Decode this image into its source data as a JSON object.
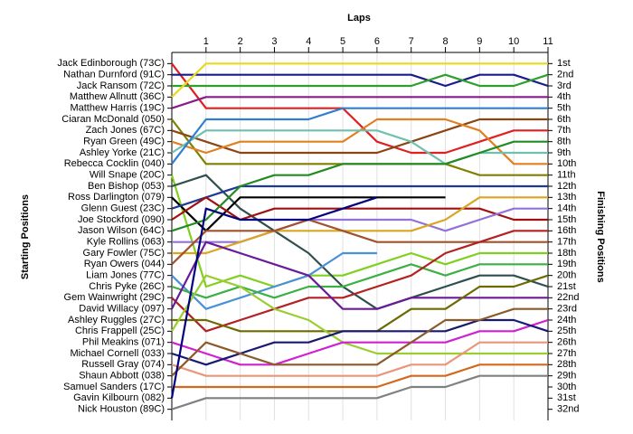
{
  "chart_data": {
    "type": "line",
    "title": "Laps",
    "ylabel": "Starting Positions",
    "y2label": "Finishing Positions",
    "x": [
      0,
      1,
      2,
      3,
      4,
      5,
      6,
      7,
      8,
      9,
      10,
      11
    ],
    "xlim": [
      0,
      11
    ],
    "xticks": [
      1,
      2,
      3,
      4,
      5,
      6,
      7,
      8,
      9,
      10,
      11
    ],
    "ylim": [
      0,
      33
    ],
    "invert_y": true,
    "grid": true,
    "finish_labels": [
      "1st",
      "2nd",
      "3rd",
      "4th",
      "5th",
      "6th",
      "7th",
      "8th",
      "9th",
      "10th",
      "11th",
      "12th",
      "13th",
      "14th",
      "15th",
      "16th",
      "17th",
      "18th",
      "19th",
      "20th",
      "21st",
      "22nd",
      "23rd",
      "24th",
      "25th",
      "26th",
      "27th",
      "28th",
      "29th",
      "30th",
      "31st",
      "32nd"
    ],
    "series": [
      {
        "name": "Jack Edinborough (73C)",
        "color": "#e02020",
        "values": [
          1,
          5,
          5,
          5,
          5,
          5,
          8,
          9,
          9,
          8,
          7,
          7
        ]
      },
      {
        "name": "Nathan Durnford (91C)",
        "color": "#1a1a8c",
        "values": [
          2,
          2,
          2,
          2,
          2,
          2,
          2,
          2,
          3,
          2,
          2,
          3
        ]
      },
      {
        "name": "Jack Ransom (72C)",
        "color": "#2ca02c",
        "values": [
          3,
          3,
          3,
          3,
          3,
          3,
          3,
          3,
          2,
          3,
          3,
          2
        ]
      },
      {
        "name": "Matthew Allnutt (36C)",
        "color": "#e8d820",
        "values": [
          4,
          1,
          1,
          1,
          1,
          1,
          1,
          1,
          1,
          1,
          1,
          1
        ]
      },
      {
        "name": "Matthew Harris (19C)",
        "color": "#8b1a8b",
        "values": [
          5,
          4,
          4,
          4,
          4,
          4,
          4,
          4,
          4,
          4,
          4,
          4
        ]
      },
      {
        "name": "Ciaran McDonald (050)",
        "color": "#808000",
        "values": [
          6,
          10,
          10,
          10,
          10,
          10,
          10,
          10,
          10,
          11,
          11,
          11
        ]
      },
      {
        "name": "Zach Jones (67C)",
        "color": "#8b4513",
        "values": [
          7,
          8,
          9,
          9,
          9,
          9,
          9,
          8,
          7,
          6,
          6,
          6
        ]
      },
      {
        "name": "Ryan Green (49C)",
        "color": "#e08020",
        "values": [
          8,
          9,
          8,
          8,
          8,
          8,
          6,
          6,
          6,
          7,
          10,
          10
        ]
      },
      {
        "name": "Ashley Yorke (21C)",
        "color": "#70c0b0",
        "values": [
          9,
          7,
          7,
          7,
          7,
          7,
          7,
          8,
          10,
          9,
          9,
          9
        ]
      },
      {
        "name": "Rebecca Cocklin (040)",
        "color": "#2f7fd0",
        "values": [
          10,
          6,
          6,
          6,
          6,
          5,
          5,
          5,
          5,
          5,
          5,
          5
        ]
      },
      {
        "name": "Will Snape (20C)",
        "color": "#80d020",
        "values": [
          11,
          21,
          20,
          21,
          20,
          20,
          19,
          18,
          19,
          18,
          18,
          18
        ]
      },
      {
        "name": "Ben Bishop (053)",
        "color": "#2f4f4f",
        "values": [
          12,
          11,
          14,
          16,
          18,
          21,
          23,
          22,
          21,
          20,
          20,
          21
        ]
      },
      {
        "name": "Ross Darlington (079)",
        "color": "#000000",
        "values": [
          13,
          16,
          13,
          13,
          13,
          13,
          13,
          13,
          13,
          null,
          null,
          null
        ]
      },
      {
        "name": "Glenn Guest (23C)",
        "color": "#1f3a93",
        "values": [
          14,
          13,
          12,
          12,
          12,
          12,
          12,
          12,
          12,
          12,
          12,
          12
        ]
      },
      {
        "name": "Joe Stockford (090)",
        "color": "#a01010",
        "values": [
          15,
          13,
          15,
          14,
          14,
          14,
          14,
          14,
          14,
          14,
          15,
          15
        ]
      },
      {
        "name": "Jason Wilson (64C)",
        "color": "#228b22",
        "values": [
          16,
          15,
          12,
          11,
          11,
          10,
          10,
          10,
          10,
          9,
          8,
          8
        ]
      },
      {
        "name": "Kyle Rollins (063)",
        "color": "#9370db",
        "values": [
          17,
          17,
          17,
          16,
          15,
          15,
          15,
          15,
          16,
          15,
          14,
          14
        ]
      },
      {
        "name": "Gary Fowler (75C)",
        "color": "#daa520",
        "values": [
          18,
          18,
          17,
          16,
          16,
          16,
          16,
          16,
          15,
          13,
          13,
          13
        ]
      },
      {
        "name": "Ryan Owers (044)",
        "color": "#a0522d",
        "values": [
          19,
          16,
          16,
          16,
          15,
          16,
          17,
          17,
          17,
          17,
          17,
          17
        ]
      },
      {
        "name": "Liam Jones (77C)",
        "color": "#4a90d9",
        "values": [
          20,
          23,
          22,
          21,
          20,
          18,
          18,
          null,
          null,
          null,
          null,
          null
        ]
      },
      {
        "name": "Chris Pyke (26C)",
        "color": "#3cb043",
        "values": [
          21,
          22,
          21,
          22,
          21,
          21,
          20,
          19,
          20,
          19,
          19,
          19
        ]
      },
      {
        "name": "Gem Wainwright (29C)",
        "color": "#b22222",
        "values": [
          22,
          25,
          24,
          23,
          22,
          22,
          21,
          20,
          18,
          17,
          16,
          16
        ]
      },
      {
        "name": "David Willacy (097)",
        "color": "#6a1b9a",
        "values": [
          23,
          17,
          18,
          19,
          20,
          23,
          23,
          22,
          22,
          22,
          22,
          22
        ]
      },
      {
        "name": "Ashley Ruggles (27C)",
        "color": "#6b6b00",
        "values": [
          24,
          24,
          25,
          25,
          25,
          25,
          25,
          23,
          23,
          21,
          21,
          20
        ]
      },
      {
        "name": "Chris Frappell (25C)",
        "color": "#9acd32",
        "values": [
          25,
          20,
          21,
          23,
          24,
          26,
          27,
          27,
          27,
          27,
          27,
          27
        ]
      },
      {
        "name": "Phil Meakins (071)",
        "color": "#d020d0",
        "values": [
          26,
          27,
          28,
          28,
          27,
          26,
          26,
          26,
          26,
          25,
          25,
          24
        ]
      },
      {
        "name": "Michael Cornell (033)",
        "color": "#191970",
        "values": [
          27,
          28,
          27,
          26,
          26,
          25,
          25,
          25,
          25,
          24,
          24,
          25
        ]
      },
      {
        "name": "Russell Gray (074)",
        "color": "#e9967a",
        "values": [
          28,
          29,
          29,
          29,
          29,
          29,
          29,
          28,
          28,
          26,
          26,
          26
        ]
      },
      {
        "name": "Shaun Abbott (038)",
        "color": "#8b5a2b",
        "values": [
          29,
          26,
          27,
          28,
          28,
          28,
          28,
          26,
          24,
          24,
          23,
          23
        ]
      },
      {
        "name": "Samuel Sanders (17C)",
        "color": "#d2691e",
        "values": [
          30,
          30,
          30,
          30,
          30,
          30,
          30,
          29,
          29,
          28,
          28,
          28
        ]
      },
      {
        "name": "Gavin Kilbourn (082)",
        "color": "#000080",
        "values": [
          31,
          14,
          15,
          15,
          15,
          14,
          13,
          null,
          null,
          null,
          null,
          null
        ]
      },
      {
        "name": "Nick Houston (89C)",
        "color": "#808080",
        "values": [
          32,
          31,
          31,
          31,
          31,
          31,
          31,
          30,
          30,
          29,
          29,
          29
        ]
      }
    ]
  }
}
